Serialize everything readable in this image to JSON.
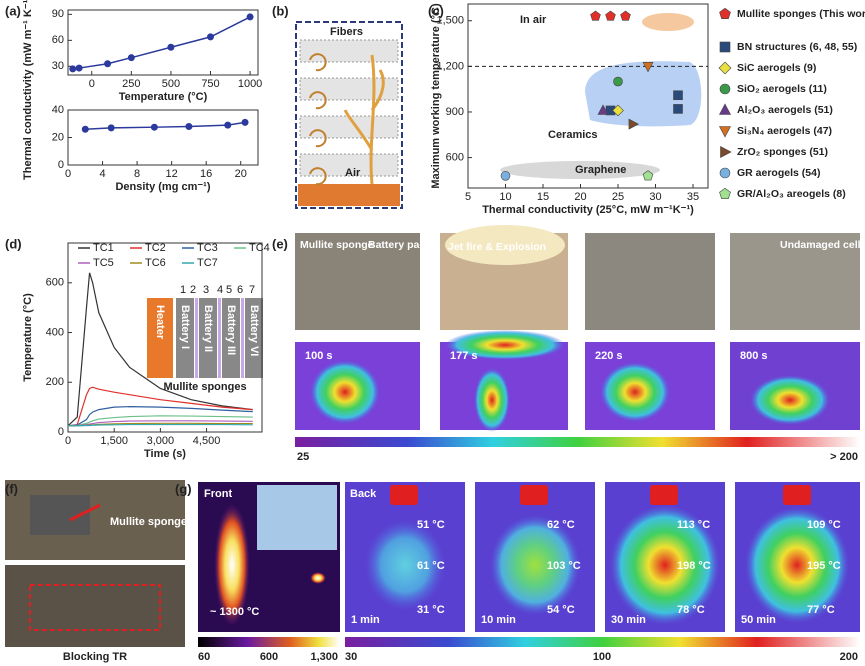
{
  "figure": {
    "panel_labels": [
      "(a)",
      "(b)",
      "(c)",
      "(d)",
      "(e)",
      "(f)",
      "(g)"
    ],
    "b": {
      "fibers": "Fibers",
      "air": "Air"
    },
    "d_inset": {
      "numbers": [
        "1",
        "2",
        "3",
        "4",
        "5",
        "6",
        "7"
      ],
      "blocks": [
        "Heater",
        "Battery I",
        "Battery II",
        "Battery III",
        "Battery VI"
      ],
      "caption": "Mullite sponges"
    },
    "e": {
      "photo_labels": [
        "Mullite sponge",
        "Battery pack",
        "Jet fire & Explosion",
        "Undamaged cells"
      ],
      "times": [
        "100 s",
        "177 s",
        "220 s",
        "800 s"
      ],
      "colorbar": [
        "25",
        "> 200"
      ]
    },
    "f": {
      "label": "Mullite sponges",
      "caption": "Blocking TR"
    },
    "g": {
      "front": "Front",
      "front_temp": "~ 1300 °C",
      "back": "Back",
      "panels": [
        {
          "time": "1 min",
          "temps": [
            "51 °C",
            "61 °C",
            "31 °C"
          ]
        },
        {
          "time": "10 min",
          "temps": [
            "62 °C",
            "103 °C",
            "54 °C"
          ]
        },
        {
          "time": "30 min",
          "temps": [
            "113 °C",
            "198 °C",
            "78 °C"
          ]
        },
        {
          "time": "50 min",
          "temps": [
            "109 °C",
            "195 °C",
            "77 °C"
          ]
        }
      ],
      "colorbar_front": [
        "60",
        "600",
        "1,300"
      ],
      "colorbar_back": [
        "30",
        "100",
        "200"
      ]
    }
  },
  "chart_data": [
    {
      "type": "line",
      "x_label": "Temperature (°C)",
      "y_label": "Thermal conductivity (mW m⁻¹ K⁻¹)",
      "x": [
        -120,
        -80,
        100,
        250,
        500,
        750,
        1000
      ],
      "series": [
        {
          "color": "#2b3a9c",
          "values": [
            27,
            28,
            33,
            40,
            52,
            64,
            87
          ]
        }
      ],
      "xlim": [
        -150,
        1050
      ],
      "xticks": [
        0,
        250,
        500,
        750,
        1000
      ],
      "ylim": [
        20,
        95
      ],
      "yticks": [
        30,
        60,
        90
      ]
    },
    {
      "type": "line",
      "x_label": "Density (mg cm⁻¹)",
      "x": [
        2,
        5,
        10,
        14,
        18.5,
        20.5
      ],
      "series": [
        {
          "color": "#2b3a9c",
          "values": [
            26,
            27,
            27.5,
            28,
            29,
            31
          ]
        }
      ],
      "xlim": [
        0,
        22
      ],
      "xticks": [
        0,
        4,
        8,
        12,
        16,
        20
      ],
      "ylim": [
        0,
        40
      ],
      "yticks": [
        0,
        20,
        40
      ]
    },
    {
      "type": "scatter",
      "x_label": "Thermal conductivity (25°C, mW m⁻¹K⁻¹)",
      "y_label": "Maximum working temperature (°C)",
      "annotations": [
        "In air",
        "Ceramics",
        "Graphene"
      ],
      "reference_line": 1200,
      "series": [
        {
          "name": "Mullite sponges (This work)",
          "color": "#e0302a",
          "marker": "pentagon",
          "x": [
            22,
            24,
            26
          ],
          "values": [
            1530,
            1530,
            1530
          ]
        },
        {
          "name": "BN structures (6, 48, 55)",
          "color": "#2a4a7a",
          "marker": "square",
          "x": [
            24,
            33,
            33
          ],
          "values": [
            910,
            1010,
            920
          ]
        },
        {
          "name": "SiC aerogels (9)",
          "color": "#e8e040",
          "marker": "diamond",
          "x": [
            25
          ],
          "values": [
            910
          ]
        },
        {
          "name": "SiO₂ aerogels (11)",
          "color": "#3a9a4a",
          "marker": "circle",
          "x": [
            25
          ],
          "values": [
            1100
          ]
        },
        {
          "name": "Al₂O₃ aerogels (51)",
          "color": "#6a3a8a",
          "marker": "triangle",
          "x": [
            23
          ],
          "values": [
            910
          ]
        },
        {
          "name": "Si₃N₄ aerogels (47)",
          "color": "#d07020",
          "marker": "triangle-down",
          "x": [
            29
          ],
          "values": [
            1200
          ]
        },
        {
          "name": "ZrO₂ sponges (51)",
          "color": "#7a4a2a",
          "marker": "triangle-right",
          "x": [
            27
          ],
          "values": [
            820
          ]
        },
        {
          "name": "GR aerogels (54)",
          "color": "#7ab0e0",
          "marker": "circle",
          "x": [
            10
          ],
          "values": [
            480
          ]
        },
        {
          "name": "GR/Al₂O₃ areogels (8)",
          "color": "#a0e090",
          "marker": "pentagon",
          "x": [
            29
          ],
          "values": [
            480
          ]
        }
      ],
      "xlim": [
        5,
        37
      ],
      "xticks": [
        5,
        10,
        15,
        20,
        25,
        30,
        35
      ],
      "ylim": [
        400,
        1610
      ],
      "yticks": [
        600,
        900,
        {
          "value": 1200,
          "label": "1,200"
        },
        {
          "value": 1500,
          "label": "1,500"
        }
      ]
    },
    {
      "type": "line",
      "x_label": "Time (s)",
      "y_label": "Temperature (°C)",
      "x": [
        0,
        300,
        600,
        700,
        800,
        1000,
        1500,
        2000,
        3000,
        4000,
        5000,
        6000
      ],
      "series": [
        {
          "name": "TC1",
          "color": "#333333",
          "values": [
            25,
            60,
            500,
            640,
            600,
            480,
            340,
            260,
            175,
            130,
            105,
            90
          ]
        },
        {
          "name": "TC2",
          "color": "#e0302a",
          "values": [
            25,
            30,
            150,
            175,
            180,
            172,
            160,
            150,
            130,
            115,
            100,
            90
          ]
        },
        {
          "name": "TC3",
          "color": "#2f5fa0",
          "values": [
            25,
            28,
            50,
            70,
            80,
            90,
            100,
            102,
            100,
            95,
            88,
            82
          ]
        },
        {
          "name": "TC4",
          "color": "#6abf8a",
          "values": [
            25,
            26,
            35,
            40,
            45,
            52,
            58,
            62,
            65,
            64,
            62,
            60
          ]
        },
        {
          "name": "TC5",
          "color": "#b060c0",
          "values": [
            25,
            26,
            30,
            32,
            34,
            38,
            42,
            44,
            45,
            45,
            44,
            43
          ]
        },
        {
          "name": "TC6",
          "color": "#a08a20",
          "values": [
            25,
            25,
            27,
            28,
            29,
            31,
            33,
            34,
            35,
            35,
            34,
            34
          ]
        },
        {
          "name": "TC7",
          "color": "#30a8b0",
          "values": [
            25,
            25,
            26,
            26,
            27,
            28,
            29,
            30,
            30,
            30,
            30,
            29
          ]
        }
      ],
      "xlim": [
        0,
        6300
      ],
      "xticks": [
        0,
        {
          "value": 1500,
          "label": "1,500"
        },
        {
          "value": 3000,
          "label": "3,000"
        },
        {
          "value": 4500,
          "label": "4,500"
        }
      ],
      "ylim": [
        0,
        760
      ],
      "yticks": [
        0,
        200,
        400,
        600
      ]
    }
  ]
}
